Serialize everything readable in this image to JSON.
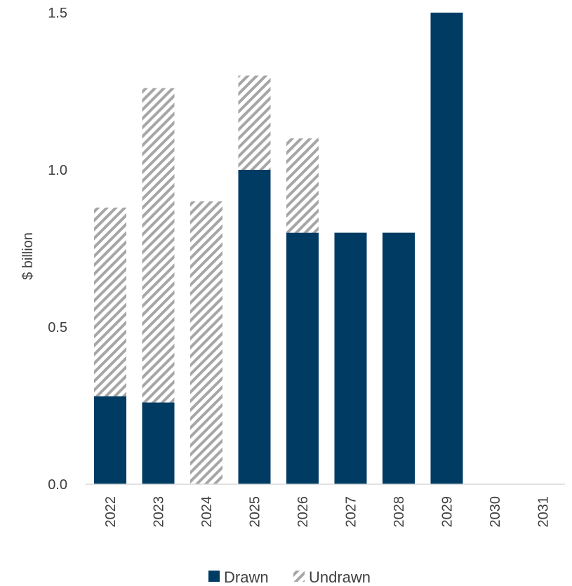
{
  "chart_data": {
    "type": "bar",
    "stacked": true,
    "categories": [
      "2022",
      "2023",
      "2024",
      "2025",
      "2026",
      "2027",
      "2028",
      "2029",
      "2030",
      "2031"
    ],
    "series": [
      {
        "name": "Drawn",
        "values": [
          0.28,
          0.26,
          0.0,
          1.0,
          0.8,
          0.8,
          0.8,
          1.5,
          0.0,
          0.0
        ],
        "color": "#003b64",
        "pattern": "solid"
      },
      {
        "name": "Undrawn",
        "values": [
          0.6,
          1.0,
          0.9,
          0.3,
          0.3,
          0.0,
          0.0,
          0.0,
          0.0,
          0.0
        ],
        "color": "#a6a6a6",
        "pattern": "diagonal-hatch"
      }
    ],
    "ylabel": "$ billion",
    "ylim": [
      0,
      1.5
    ],
    "yticks": [
      "0.0",
      "0.5",
      "1.0",
      "1.5"
    ],
    "xlabel_rotation": "vertical",
    "grid": false,
    "legend": "bottom-center"
  }
}
